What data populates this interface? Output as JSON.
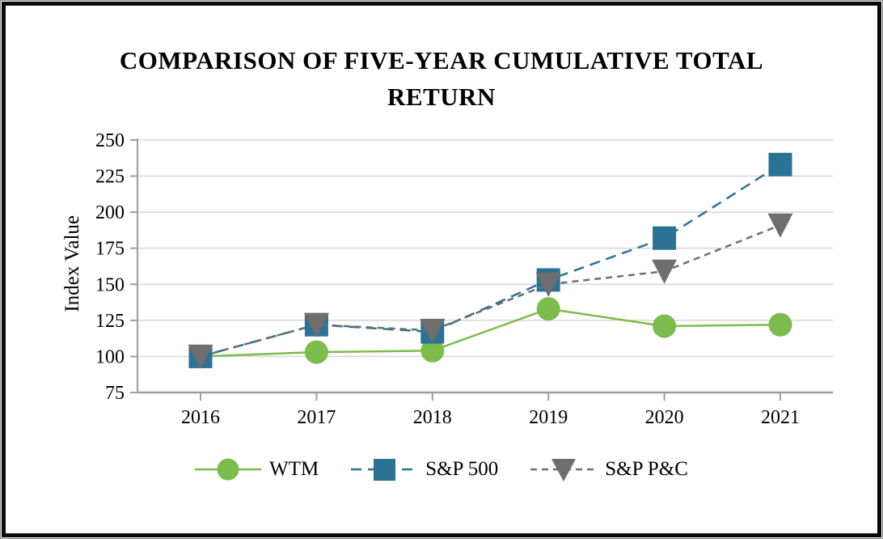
{
  "frame": {
    "border_color": "#0a0a0a"
  },
  "chart_data": {
    "type": "line",
    "title": "COMPARISON OF FIVE-YEAR CUMULATIVE TOTAL RETURN",
    "ylabel": "Index Value",
    "xlabel": "",
    "categories": [
      "2016",
      "2017",
      "2018",
      "2019",
      "2020",
      "2021"
    ],
    "y_ticks": [
      250,
      225,
      200,
      175,
      150,
      125,
      100,
      75
    ],
    "ylim": [
      75,
      250
    ],
    "grid": "horizontal",
    "legend_position": "bottom-center",
    "series": [
      {
        "name": "WTM",
        "values": [
          100,
          103,
          104,
          133,
          121,
          122
        ],
        "color": "#7bbc4d",
        "marker": "circle",
        "line_style": "solid"
      },
      {
        "name": "S&P 500",
        "values": [
          100,
          122,
          117,
          153,
          182,
          233
        ],
        "color": "#2b7294",
        "marker": "square",
        "line_style": "long-dash"
      },
      {
        "name": "S&P P&C",
        "values": [
          100,
          122,
          118,
          150,
          159,
          191
        ],
        "color": "#6e6e6e",
        "marker": "triangle-down",
        "line_style": "dash"
      }
    ],
    "colors": {
      "gridline": "#d9d9d9",
      "axis": "#9e9e9e",
      "text": "#000000"
    }
  }
}
